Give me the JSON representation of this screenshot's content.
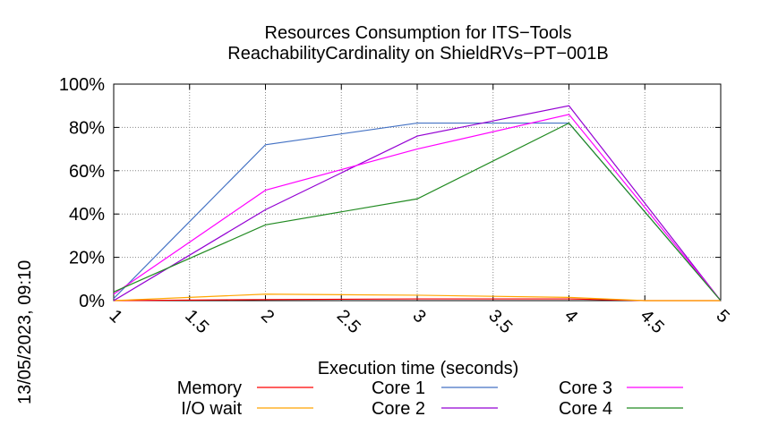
{
  "chart_data": {
    "type": "line",
    "title": "Resources Consumption for ITS−Tools",
    "subtitle": "ReachabilityCardinality on ShieldRVs−PT−001B",
    "xlabel": "Execution time (seconds)",
    "ylabel": "",
    "xlim": [
      1,
      5
    ],
    "ylim": [
      0,
      100
    ],
    "x_ticks": [
      "1",
      "1.5",
      "2",
      "2.5",
      "3",
      "3.5",
      "4",
      "4.5",
      "5"
    ],
    "y_ticks": [
      "0%",
      "20%",
      "40%",
      "60%",
      "80%",
      "100%"
    ],
    "grid": true,
    "legend_placement": "bottom",
    "side_label": "13/05/2023, 09:10",
    "series": [
      {
        "name": "Memory",
        "color": "#ff0000",
        "x": [
          1,
          2,
          3,
          4,
          4.5,
          5
        ],
        "y": [
          0,
          0.5,
          0.8,
          0.8,
          0,
          0
        ]
      },
      {
        "name": "I/O wait",
        "color": "#ffa500",
        "x": [
          1,
          2,
          3,
          4,
          4.5,
          5
        ],
        "y": [
          0,
          3,
          2.5,
          1.5,
          0,
          0
        ]
      },
      {
        "name": "Core 1",
        "color": "#4472c4",
        "x": [
          1,
          2,
          3,
          4,
          5
        ],
        "y": [
          1,
          72,
          82,
          82,
          0
        ]
      },
      {
        "name": "Core 2",
        "color": "#9400d3",
        "x": [
          1,
          2,
          3,
          4,
          5
        ],
        "y": [
          0,
          42,
          76,
          90,
          0
        ]
      },
      {
        "name": "Core 3",
        "color": "#ff00ff",
        "x": [
          1,
          2,
          3,
          4,
          5
        ],
        "y": [
          3,
          51,
          70,
          86,
          0
        ]
      },
      {
        "name": "Core 4",
        "color": "#228b22",
        "x": [
          1,
          2,
          3,
          4,
          5
        ],
        "y": [
          4,
          35,
          47,
          82,
          0
        ]
      }
    ]
  }
}
